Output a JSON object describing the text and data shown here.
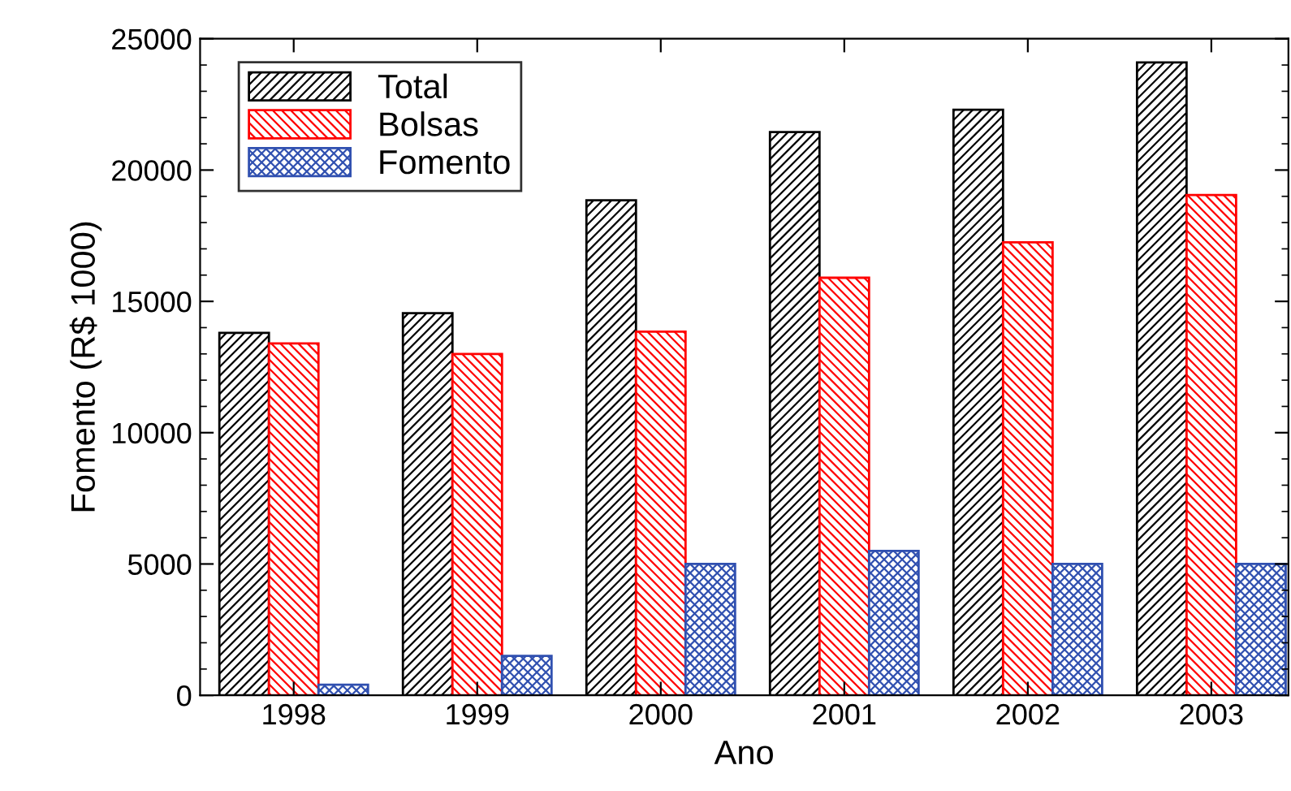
{
  "chart_data": {
    "type": "bar",
    "xlabel": "Ano",
    "ylabel": "Fomento (R$ 1000)",
    "categories": [
      "1998",
      "1999",
      "2000",
      "2001",
      "2002",
      "2003"
    ],
    "series": [
      {
        "name": "Total",
        "color": "#000000",
        "values": [
          13800,
          14550,
          18850,
          21450,
          22300,
          24100
        ]
      },
      {
        "name": "Bolsas",
        "color": "#ff0000",
        "values": [
          13400,
          13000,
          13850,
          15900,
          17250,
          19050
        ]
      },
      {
        "name": "Fomento",
        "color": "#3050b0",
        "values": [
          400,
          1500,
          5000,
          5500,
          5000,
          5000
        ]
      }
    ],
    "ylim": [
      0,
      25000
    ],
    "yticks": [
      0,
      5000,
      10000,
      15000,
      20000,
      25000
    ],
    "grid": false,
    "legend": "top left"
  }
}
